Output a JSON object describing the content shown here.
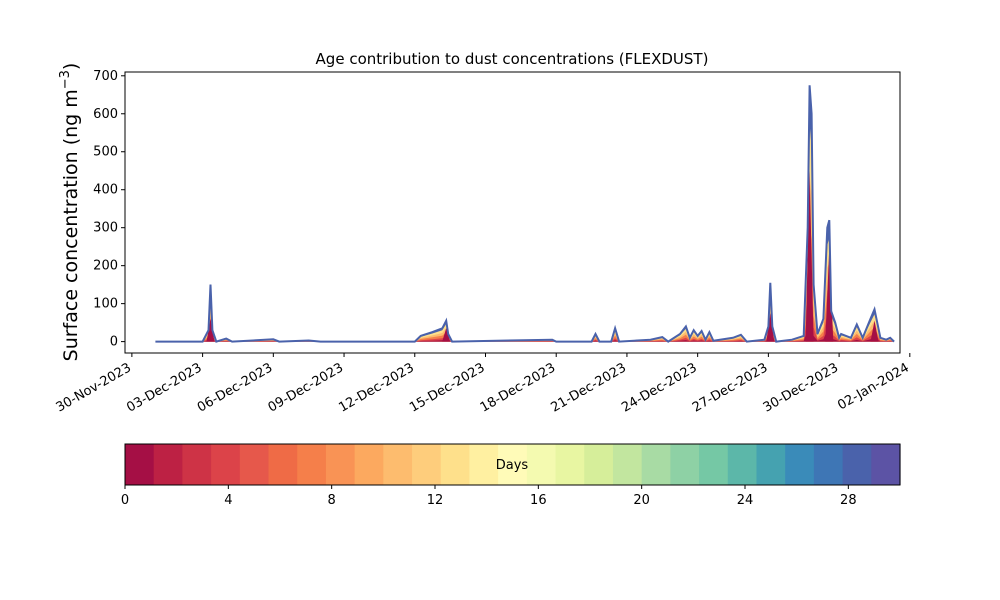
{
  "chart_data": {
    "type": "area",
    "title": "Age contribution to dust concentrations (FLEXDUST)",
    "ylabel_main": "Surface concentration (ng m",
    "ylabel_exp": "−3",
    "ylabel_close": ")",
    "xlabel": "",
    "x_start": "2023-11-30",
    "x_range": [
      "2023-11-29T17:00",
      "2024-01-01T14:00"
    ],
    "ylim": [
      -30,
      710
    ],
    "yticks": [
      0,
      100,
      200,
      300,
      400,
      500,
      600,
      700
    ],
    "xticks": [
      {
        "date": "2023-11-30",
        "label": "30-Nov-2023"
      },
      {
        "date": "2023-12-03",
        "label": "03-Dec-2023"
      },
      {
        "date": "2023-12-06",
        "label": "06-Dec-2023"
      },
      {
        "date": "2023-12-09",
        "label": "09-Dec-2023"
      },
      {
        "date": "2023-12-12",
        "label": "12-Dec-2023"
      },
      {
        "date": "2023-12-15",
        "label": "15-Dec-2023"
      },
      {
        "date": "2023-12-18",
        "label": "18-Dec-2023"
      },
      {
        "date": "2023-12-21",
        "label": "21-Dec-2023"
      },
      {
        "date": "2023-12-24",
        "label": "24-Dec-2023"
      },
      {
        "date": "2023-12-27",
        "label": "27-Dec-2023"
      },
      {
        "date": "2023-12-30",
        "label": "30-Dec-2023"
      },
      {
        "date": "2024-01-02",
        "label": "02-Jan-2024"
      }
    ],
    "grid": false,
    "total_series": [
      [
        "2023-12-01T00:00",
        0
      ],
      [
        "2023-12-02T00:00",
        0
      ],
      [
        "2023-12-03T00:00",
        0
      ],
      [
        "2023-12-03T06:00",
        30
      ],
      [
        "2023-12-03T08:00",
        150
      ],
      [
        "2023-12-03T10:00",
        30
      ],
      [
        "2023-12-03T14:00",
        0
      ],
      [
        "2023-12-04T00:00",
        8
      ],
      [
        "2023-12-04T06:00",
        0
      ],
      [
        "2023-12-06T00:00",
        6
      ],
      [
        "2023-12-06T06:00",
        0
      ],
      [
        "2023-12-07T12:00",
        3
      ],
      [
        "2023-12-08T00:00",
        0
      ],
      [
        "2023-12-12T00:00",
        0
      ],
      [
        "2023-12-12T06:00",
        15
      ],
      [
        "2023-12-12T18:00",
        25
      ],
      [
        "2023-12-13T04:00",
        35
      ],
      [
        "2023-12-13T08:00",
        55
      ],
      [
        "2023-12-13T10:00",
        20
      ],
      [
        "2023-12-13T14:00",
        0
      ],
      [
        "2023-12-17T20:00",
        5
      ],
      [
        "2023-12-18T00:00",
        0
      ],
      [
        "2023-12-19T12:00",
        0
      ],
      [
        "2023-12-19T16:00",
        20
      ],
      [
        "2023-12-19T20:00",
        0
      ],
      [
        "2023-12-20T08:00",
        0
      ],
      [
        "2023-12-20T12:00",
        35
      ],
      [
        "2023-12-20T16:00",
        0
      ],
      [
        "2023-12-22T00:00",
        5
      ],
      [
        "2023-12-22T12:00",
        12
      ],
      [
        "2023-12-22T18:00",
        0
      ],
      [
        "2023-12-23T06:00",
        20
      ],
      [
        "2023-12-23T12:00",
        40
      ],
      [
        "2023-12-23T16:00",
        10
      ],
      [
        "2023-12-23T20:00",
        30
      ],
      [
        "2023-12-24T00:00",
        15
      ],
      [
        "2023-12-24T04:00",
        28
      ],
      [
        "2023-12-24T08:00",
        5
      ],
      [
        "2023-12-24T12:00",
        25
      ],
      [
        "2023-12-24T16:00",
        2
      ],
      [
        "2023-12-25T12:00",
        10
      ],
      [
        "2023-12-25T20:00",
        18
      ],
      [
        "2023-12-26T02:00",
        0
      ],
      [
        "2023-12-26T20:00",
        5
      ],
      [
        "2023-12-27T00:00",
        40
      ],
      [
        "2023-12-27T02:00",
        155
      ],
      [
        "2023-12-27T04:00",
        40
      ],
      [
        "2023-12-27T08:00",
        0
      ],
      [
        "2023-12-28T00:00",
        5
      ],
      [
        "2023-12-28T12:00",
        15
      ],
      [
        "2023-12-28T16:00",
        300
      ],
      [
        "2023-12-28T18:00",
        675
      ],
      [
        "2023-12-28T20:00",
        600
      ],
      [
        "2023-12-28T22:00",
        150
      ],
      [
        "2023-12-29T02:00",
        20
      ],
      [
        "2023-12-29T08:00",
        60
      ],
      [
        "2023-12-29T12:00",
        300
      ],
      [
        "2023-12-29T14:00",
        320
      ],
      [
        "2023-12-29T16:00",
        80
      ],
      [
        "2023-12-29T20:00",
        50
      ],
      [
        "2023-12-30T00:00",
        10
      ],
      [
        "2023-12-30T02:00",
        20
      ],
      [
        "2023-12-30T12:00",
        10
      ],
      [
        "2023-12-30T18:00",
        45
      ],
      [
        "2023-12-31T00:00",
        10
      ],
      [
        "2023-12-31T08:00",
        60
      ],
      [
        "2023-12-31T12:00",
        85
      ],
      [
        "2023-12-31T18:00",
        10
      ],
      [
        "2024-01-01T00:00",
        5
      ],
      [
        "2024-01-01T04:00",
        10
      ],
      [
        "2024-01-01T08:00",
        0
      ]
    ],
    "young_fraction_series": [
      [
        "2023-12-03T08:00",
        60
      ],
      [
        "2023-12-13T08:00",
        35
      ],
      [
        "2023-12-27T02:00",
        75
      ],
      [
        "2023-12-28T18:00",
        450
      ],
      [
        "2023-12-29T14:00",
        250
      ],
      [
        "2023-12-31T12:00",
        55
      ]
    ],
    "colorbar": {
      "label": "Days",
      "min": 0,
      "max": 30,
      "ticks": [
        0,
        4,
        8,
        12,
        16,
        20,
        24,
        28
      ],
      "colors": [
        "#a50f45",
        "#bd2144",
        "#ce3346",
        "#dc4349",
        "#e6584b",
        "#ef6b46",
        "#f57f4a",
        "#f99355",
        "#fca95f",
        "#fdbc6e",
        "#fecd7c",
        "#fee08b",
        "#fff0a1",
        "#fffbb8",
        "#f4fab0",
        "#e8f6a2",
        "#d6ee9a",
        "#c2e69f",
        "#a8dba4",
        "#8ed1a5",
        "#75c8a5",
        "#5cb7a9",
        "#45a2b0",
        "#3a8bb9",
        "#3e76b5",
        "#4a62ab",
        "#5c53a5"
      ]
    },
    "series_colors": {
      "total_outline": "#4a62ab",
      "youngest": "#a50f45",
      "stack": [
        "#a50f45",
        "#dc4349",
        "#f57f4a",
        "#fdbc6e",
        "#fee08b",
        "#4a62ab"
      ]
    }
  }
}
